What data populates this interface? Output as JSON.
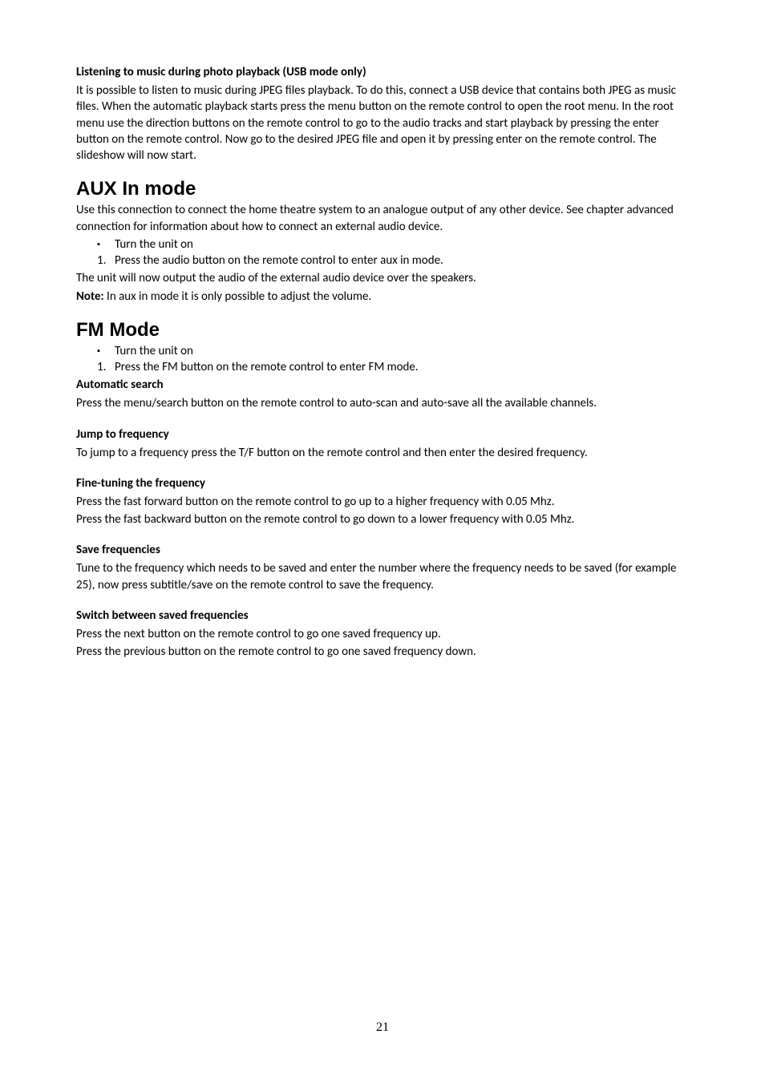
{
  "section1": {
    "title": "Listening to music during photo playback (USB mode only)",
    "body": "It is possible to listen to music during JPEG files playback. To do this, connect a USB device that contains both JPEG as music files. When the automatic playback starts press the menu button on the remote control to open the root menu. In the root menu use the direction buttons on the remote control to go to the audio tracks and start playback by pressing the enter button on the remote control. Now go to the desired JPEG file and open it by pressing enter on the remote control. The slideshow will now start."
  },
  "aux": {
    "heading": "AUX In mode",
    "intro": "Use this connection to connect the home theatre system to an analogue output of any other device. See chapter advanced connection for information about how to connect an external audio device.",
    "bullet1": "Turn the unit on",
    "num1": "Press the audio button on the remote control to enter aux in mode.",
    "line_after": "The unit will now output the audio of the external audio device over the speakers.",
    "note_label": "Note:",
    "note_text": " In aux in mode it is only possible to adjust the volume."
  },
  "fm": {
    "heading": "FM Mode",
    "bullet1": "Turn the unit on",
    "num1": "Press the FM button on the remote control to enter FM mode."
  },
  "auto_search": {
    "title": "Automatic search",
    "body": "Press the menu/search button on the remote control to auto-scan and auto-save all the available channels."
  },
  "jump": {
    "title": "Jump to frequency",
    "body": "To jump to a frequency press the T/F button on the remote control and then enter the desired frequency."
  },
  "fine": {
    "title": "Fine-tuning the frequency",
    "line1": "Press the fast forward button on the remote control to go up to a higher frequency with 0.05 Mhz.",
    "line2": "Press the fast backward button on the remote control to go down to a lower frequency with 0.05 Mhz."
  },
  "save": {
    "title": "Save frequencies",
    "body": "Tune to the frequency which needs to be saved and enter the number where the frequency needs to be saved (for example 25), now press subtitle/save on the remote control to save the frequency."
  },
  "switch": {
    "title": "Switch between saved frequencies",
    "line1": "Press the next button on the remote control to go one saved frequency up.",
    "line2": "Press the previous button on the remote control to go one saved frequency down."
  },
  "page_number": "21"
}
